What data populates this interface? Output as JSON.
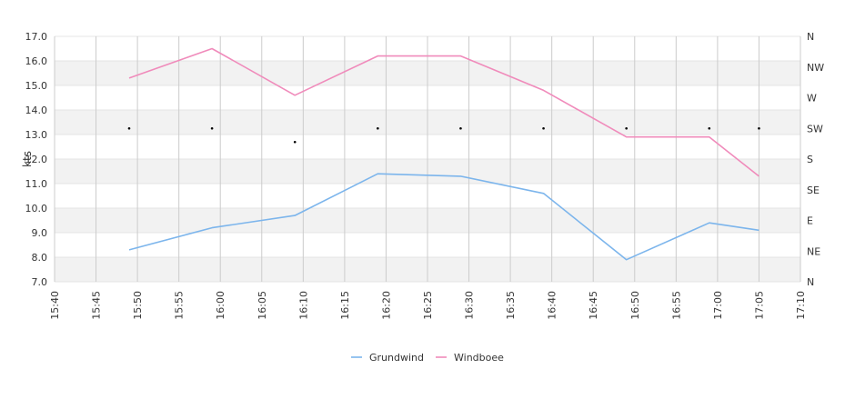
{
  "chart_data": {
    "type": "line",
    "ylabel": "kts",
    "ylim": [
      7.0,
      17.0
    ],
    "y_ticks": [
      "7.0",
      "8.0",
      "9.0",
      "10.0",
      "11.0",
      "12.0",
      "13.0",
      "14.0",
      "15.0",
      "16.0",
      "17.0"
    ],
    "x_range": [
      "15:40",
      "17:10"
    ],
    "x_ticks": [
      "15:40",
      "15:45",
      "15:50",
      "15:55",
      "16:00",
      "16:05",
      "16:10",
      "16:15",
      "16:20",
      "16:25",
      "16:30",
      "16:35",
      "16:40",
      "16:45",
      "16:50",
      "16:55",
      "17:00",
      "17:05",
      "17:10"
    ],
    "direction_ticks": [
      "N",
      "NE",
      "E",
      "SE",
      "S",
      "SW",
      "W",
      "NW",
      "N"
    ],
    "direction_range_deg": [
      0,
      360
    ],
    "grid": true,
    "legend_position": "bottom",
    "series": [
      {
        "name": "Grundwind",
        "color": "#7cb5ec",
        "x": [
          "15:49",
          "15:59",
          "16:09",
          "16:19",
          "16:29",
          "16:39",
          "16:49",
          "16:59",
          "17:05"
        ],
        "values": [
          8.3,
          9.2,
          9.7,
          11.4,
          11.3,
          10.6,
          7.9,
          9.4,
          9.1
        ]
      },
      {
        "name": "Windboee",
        "color": "#f08bbb",
        "x": [
          "15:49",
          "15:59",
          "16:09",
          "16:19",
          "16:29",
          "16:39",
          "16:49",
          "16:59",
          "17:05"
        ],
        "values": [
          15.3,
          16.5,
          14.6,
          16.2,
          16.2,
          14.8,
          12.9,
          12.9,
          11.3
        ]
      }
    ],
    "direction_points": {
      "x": [
        "15:49",
        "15:59",
        "16:09",
        "16:19",
        "16:29",
        "16:39",
        "16:49",
        "16:59",
        "17:05"
      ],
      "values_deg": [
        225,
        225,
        205,
        225,
        225,
        225,
        225,
        225,
        225
      ]
    }
  }
}
